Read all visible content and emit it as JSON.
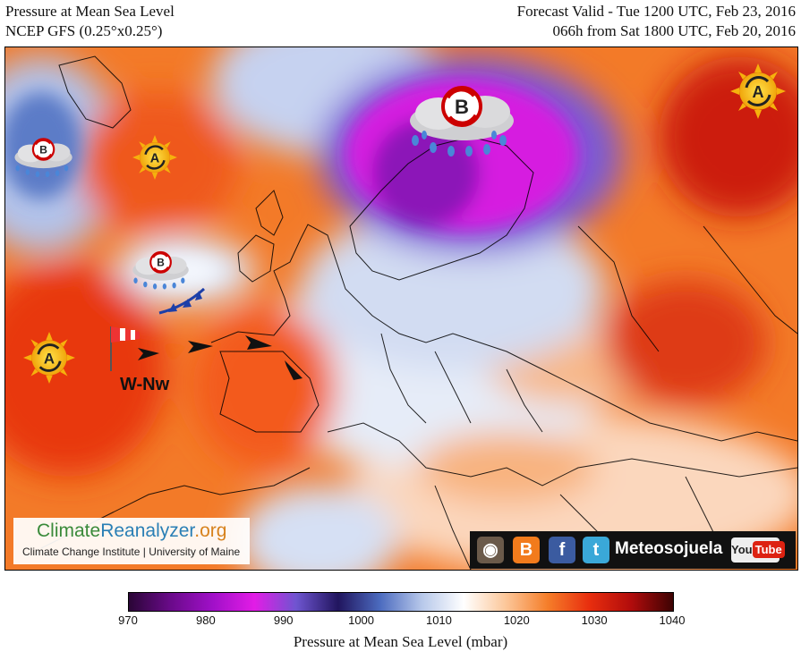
{
  "header": {
    "title": "Pressure at Mean Sea Level",
    "model": "NCEP GFS (0.25°x0.25°)",
    "valid": "Forecast Valid - Tue 1200 UTC, Feb 23, 2016",
    "run": "066h from Sat 1800 UTC, Feb 20, 2016"
  },
  "map": {
    "pressure_systems": [
      {
        "label": "A",
        "type": "high",
        "icon": "sun-high-icon"
      },
      {
        "label": "A",
        "type": "high",
        "icon": "sun-high-icon"
      },
      {
        "label": "A",
        "type": "high",
        "icon": "sun-high-icon"
      },
      {
        "label": "B",
        "type": "low",
        "icon": "rain-cloud-low-icon"
      },
      {
        "label": "B",
        "type": "low",
        "icon": "rain-cloud-low-icon"
      },
      {
        "label": "B",
        "type": "low",
        "icon": "rain-cloud-low-icon"
      }
    ],
    "wind_label": "W-Nw",
    "wind_icon": "windsock-icon"
  },
  "branding": {
    "name_part1": "Climate",
    "name_part2": "Reanalyzer",
    "name_part3": ".org",
    "subtitle": "Climate Change Institute | University of Maine"
  },
  "social": {
    "name": "Meteosojuela",
    "youtube_left": "You",
    "youtube_right": "Tube",
    "icons": [
      "instagram-icon",
      "blogger-icon",
      "facebook-icon",
      "twitter-icon",
      "youtube-icon"
    ]
  },
  "colorbar": {
    "title": "Pressure at Mean Sea Level (mbar)",
    "ticks": [
      "970",
      "980",
      "990",
      "1000",
      "1010",
      "1020",
      "1030",
      "1040"
    ],
    "colors": [
      "#2a0636",
      "#6a0a8a",
      "#a010c8",
      "#e21ce6",
      "#6e55d0",
      "#21155e",
      "#4c6bbf",
      "#b7c8ea",
      "#ffffff",
      "#fcc79a",
      "#f57e2a",
      "#e82e0e",
      "#b10c0c",
      "#3d0303"
    ]
  }
}
